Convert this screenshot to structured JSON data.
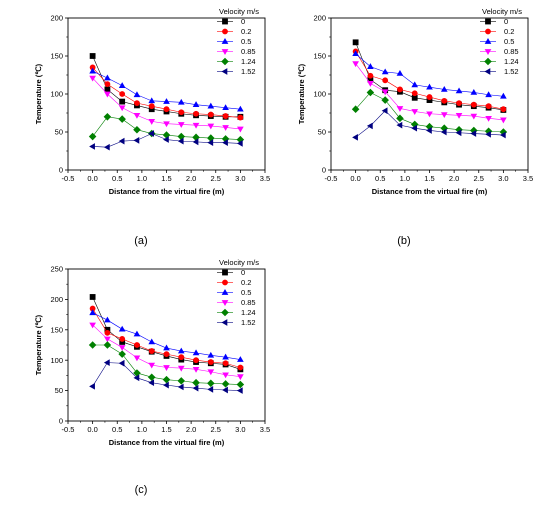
{
  "figure": {
    "captions": [
      "(a)",
      "(b)",
      "(c)"
    ]
  },
  "chart_data": [
    {
      "type": "line",
      "xlabel": "Distance from the virtual fire (m)",
      "ylabel": "Temperature (℃)",
      "xlim": [
        -0.5,
        3.5
      ],
      "ylim": [
        0,
        200
      ],
      "xticks": [
        "-0.5",
        "0.0",
        "0.5",
        "1.0",
        "1.5",
        "2.0",
        "2.5",
        "3.0",
        "3.5"
      ],
      "yticks": [
        "0",
        "50",
        "100",
        "150",
        "200"
      ],
      "legend_title": "Velocity m/s",
      "legend_position": "top-right",
      "x": [
        0,
        0.3,
        0.6,
        0.9,
        1.2,
        1.5,
        1.8,
        2.1,
        2.4,
        2.7,
        3.0
      ],
      "series": [
        {
          "name": "0",
          "color": "#000000",
          "marker": "square",
          "values": [
            150,
            106,
            90,
            85,
            80,
            77,
            74,
            72,
            71,
            70,
            70
          ]
        },
        {
          "name": "0.2",
          "color": "#ff0000",
          "marker": "circle",
          "values": [
            135,
            113,
            100,
            88,
            84,
            80,
            76,
            74,
            73,
            71,
            69
          ]
        },
        {
          "name": "0.5",
          "color": "#0000ff",
          "marker": "triangle-up",
          "values": [
            130,
            121,
            111,
            99,
            91,
            90,
            89,
            86,
            84,
            82,
            80
          ]
        },
        {
          "name": "0.85",
          "color": "#ff00ff",
          "marker": "triangle-down",
          "values": [
            121,
            100,
            82,
            72,
            64,
            61,
            60,
            59,
            58,
            56,
            54
          ]
        },
        {
          "name": "1.24",
          "color": "#008000",
          "marker": "diamond",
          "values": [
            44,
            70,
            67,
            53,
            48,
            46,
            44,
            43,
            42,
            41,
            40
          ]
        },
        {
          "name": "1.52",
          "color": "#000080",
          "marker": "triangle-left",
          "values": [
            31,
            30,
            38,
            39,
            48,
            40,
            38,
            37,
            36,
            36,
            35
          ]
        }
      ]
    },
    {
      "type": "line",
      "xlabel": "Distance from the virtual fire (m)",
      "ylabel": "Temperature (℃)",
      "xlim": [
        -0.5,
        3.5
      ],
      "ylim": [
        0,
        200
      ],
      "xticks": [
        "-0.5",
        "0.0",
        "0.5",
        "1.0",
        "1.5",
        "2.0",
        "2.5",
        "3.0",
        "3.5"
      ],
      "yticks": [
        "0",
        "50",
        "100",
        "150",
        "200"
      ],
      "legend_title": "Velocity m/s",
      "legend_position": "top-right",
      "x": [
        0,
        0.3,
        0.6,
        0.9,
        1.2,
        1.5,
        1.8,
        2.1,
        2.4,
        2.7,
        3.0
      ],
      "series": [
        {
          "name": "0",
          "color": "#000000",
          "marker": "square",
          "values": [
            168,
            119,
            105,
            103,
            95,
            92,
            89,
            86,
            84,
            82,
            79
          ]
        },
        {
          "name": "0.2",
          "color": "#ff0000",
          "marker": "circle",
          "values": [
            156,
            124,
            118,
            106,
            101,
            96,
            91,
            88,
            86,
            84,
            80
          ]
        },
        {
          "name": "0.5",
          "color": "#0000ff",
          "marker": "triangle-up",
          "values": [
            153,
            136,
            129,
            127,
            112,
            109,
            106,
            104,
            102,
            99,
            97
          ]
        },
        {
          "name": "0.85",
          "color": "#ff00ff",
          "marker": "triangle-down",
          "values": [
            140,
            114,
            103,
            81,
            77,
            74,
            73,
            72,
            71,
            68,
            66
          ]
        },
        {
          "name": "1.24",
          "color": "#008000",
          "marker": "diamond",
          "values": [
            80,
            102,
            92,
            68,
            60,
            57,
            55,
            53,
            52,
            51,
            50
          ]
        },
        {
          "name": "1.52",
          "color": "#000080",
          "marker": "triangle-left",
          "values": [
            43,
            58,
            78,
            59,
            55,
            52,
            50,
            49,
            48,
            47,
            46
          ]
        }
      ]
    },
    {
      "type": "line",
      "xlabel": "Distance from the virtual fire (m)",
      "ylabel": "Temperature (℃)",
      "xlim": [
        -0.5,
        3.5
      ],
      "ylim": [
        0,
        250
      ],
      "xticks": [
        "-0.5",
        "0.0",
        "0.5",
        "1.0",
        "1.5",
        "2.0",
        "2.5",
        "3.0",
        "3.5"
      ],
      "yticks": [
        "0",
        "50",
        "100",
        "150",
        "200",
        "250"
      ],
      "legend_title": "Velocity m/s",
      "legend_position": "top-right",
      "x": [
        0,
        0.3,
        0.6,
        0.9,
        1.2,
        1.5,
        1.8,
        2.1,
        2.4,
        2.7,
        3.0
      ],
      "series": [
        {
          "name": "0",
          "color": "#000000",
          "marker": "square",
          "values": [
            204,
            150,
            130,
            122,
            114,
            107,
            101,
            97,
            95,
            93,
            85
          ]
        },
        {
          "name": "0.2",
          "color": "#ff0000",
          "marker": "circle",
          "values": [
            185,
            145,
            135,
            125,
            115,
            110,
            105,
            100,
            97,
            95,
            88
          ]
        },
        {
          "name": "0.5",
          "color": "#0000ff",
          "marker": "triangle-up",
          "values": [
            178,
            166,
            151,
            143,
            130,
            120,
            115,
            112,
            108,
            105,
            101
          ]
        },
        {
          "name": "0.85",
          "color": "#ff00ff",
          "marker": "triangle-down",
          "values": [
            158,
            135,
            121,
            104,
            92,
            88,
            87,
            85,
            81,
            76,
            73
          ]
        },
        {
          "name": "1.24",
          "color": "#008000",
          "marker": "diamond",
          "values": [
            125,
            125,
            110,
            79,
            72,
            68,
            66,
            63,
            62,
            61,
            60
          ]
        },
        {
          "name": "1.52",
          "color": "#000080",
          "marker": "triangle-left",
          "values": [
            57,
            96,
            95,
            71,
            63,
            59,
            56,
            54,
            52,
            51,
            50
          ]
        }
      ]
    }
  ]
}
